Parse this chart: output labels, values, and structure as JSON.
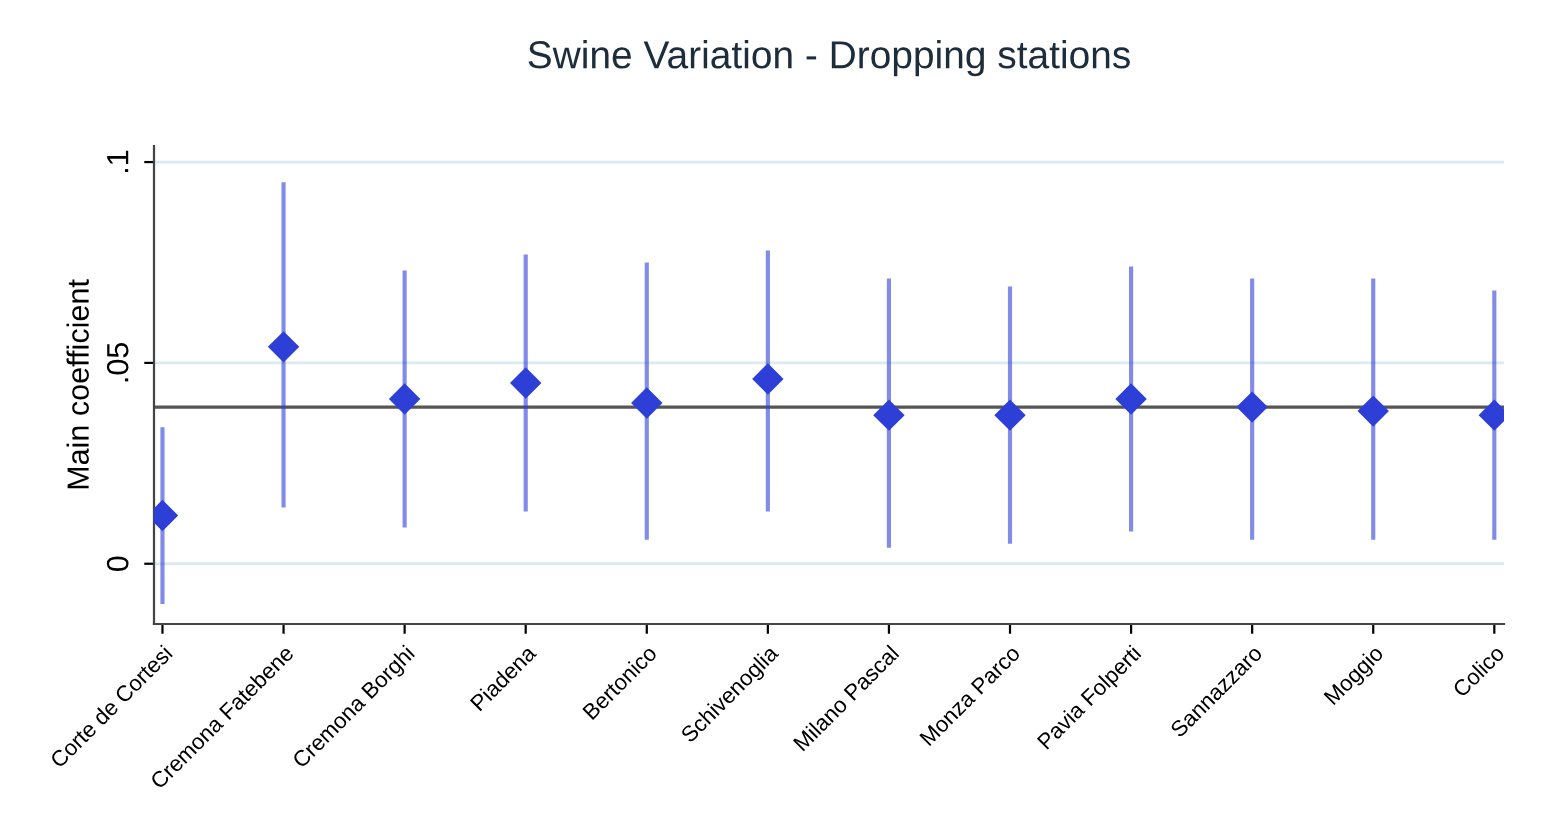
{
  "chart_data": {
    "type": "scatter",
    "title": "Swine Variation - Dropping stations",
    "ylabel": "Main coefficient",
    "categories": [
      "Corte de Cortesi",
      "Cremona Fatebene",
      "Cremona Borghi",
      "Piadena",
      "Bertonico",
      "Schivenoglia",
      "Milano Pascal",
      "Monza Parco",
      "Pavia Folperti",
      "Sannazzaro",
      "Moggio",
      "Colico"
    ],
    "series": [
      {
        "color": "#2e3fd8",
        "values": [
          0.012,
          0.054,
          0.041,
          0.045,
          0.04,
          0.046,
          0.037,
          0.037,
          0.041,
          0.039,
          0.038,
          0.037
        ],
        "errors": [
          [
            -0.01,
            0.034
          ],
          [
            0.014,
            0.095
          ],
          [
            0.009,
            0.073
          ],
          [
            0.013,
            0.077
          ],
          [
            0.006,
            0.075
          ],
          [
            0.013,
            0.078
          ],
          [
            0.004,
            0.071
          ],
          [
            0.005,
            0.069
          ],
          [
            0.008,
            0.074
          ],
          [
            0.006,
            0.071
          ],
          [
            0.006,
            0.071
          ],
          [
            0.006,
            0.068
          ]
        ]
      }
    ],
    "ylim": [
      -0.015,
      0.104
    ],
    "yticks": [
      {
        "value": 0,
        "label": "0"
      },
      {
        "value": 0.05,
        "label": ".05"
      },
      {
        "value": 0.1,
        "label": ".1"
      }
    ],
    "ref_lines": [
      {
        "axis": "y",
        "value": 0.039,
        "color": "#555555"
      }
    ],
    "grid": "y",
    "marker": "diamond",
    "legend": false
  }
}
